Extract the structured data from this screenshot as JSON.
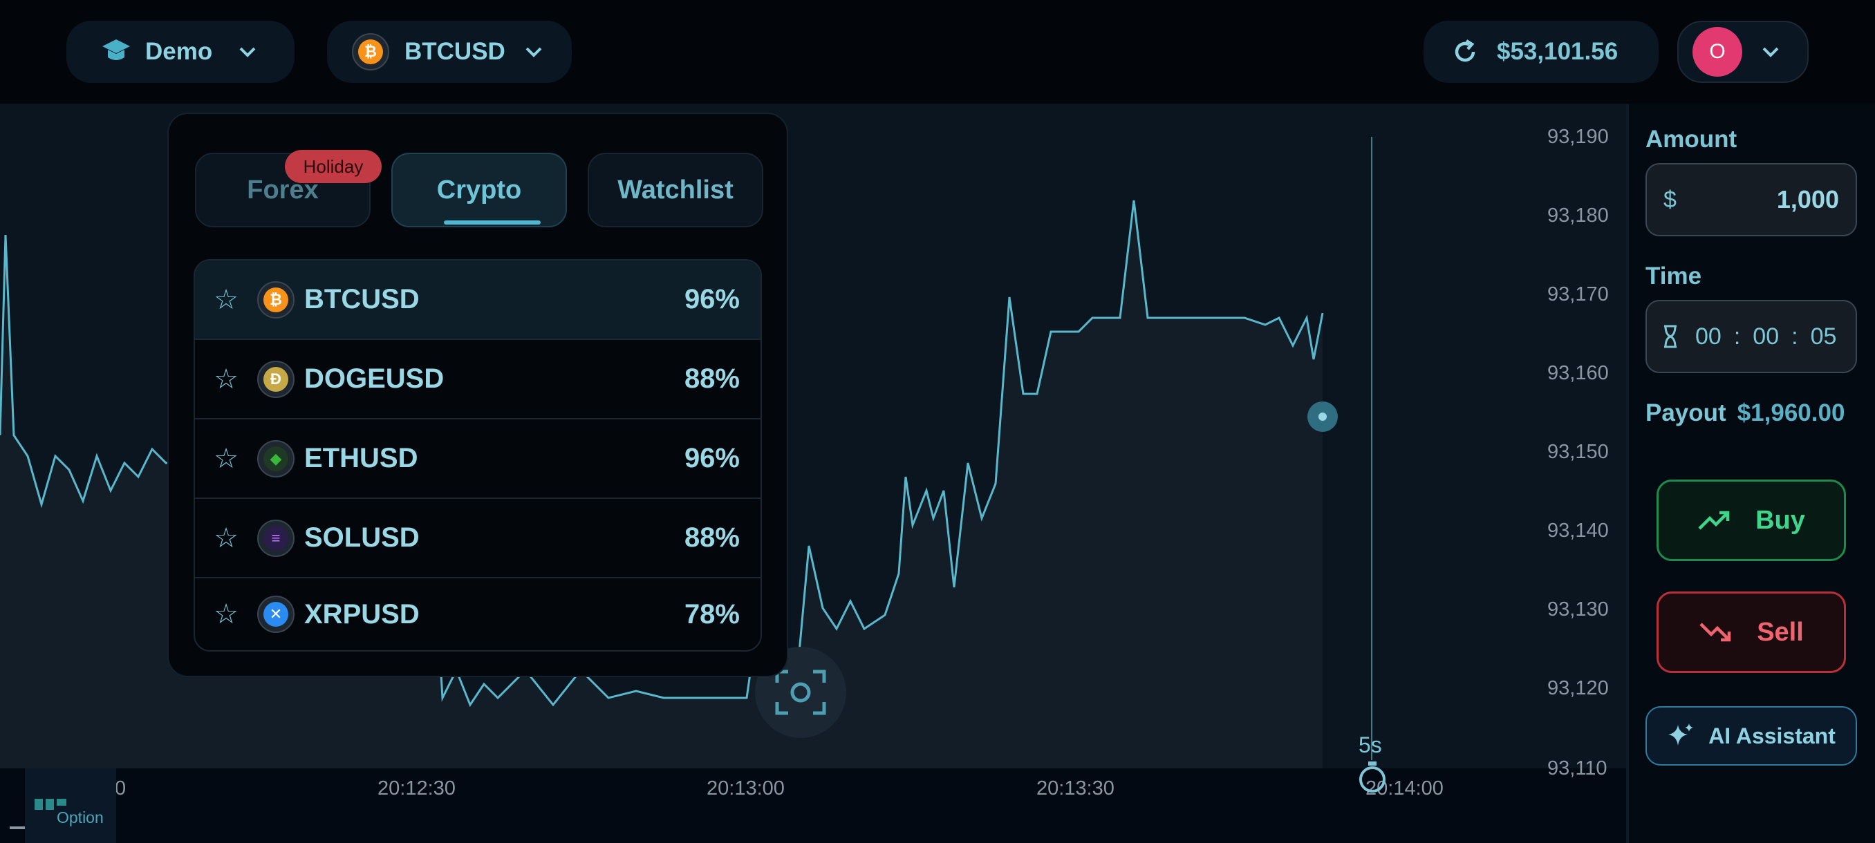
{
  "topbar": {
    "account_label": "Demo",
    "symbol": "BTCUSD",
    "balance": "$53,101.56",
    "avatar_letter": "O"
  },
  "tabs": [
    {
      "label": "Forex",
      "badge": "Holiday"
    },
    {
      "label": "Crypto"
    },
    {
      "label": "Watchlist"
    }
  ],
  "assets": [
    {
      "name": "BTCUSD",
      "payout": "96%",
      "icon_color": "#f7931a",
      "icon_text": "₿"
    },
    {
      "name": "DOGEUSD",
      "payout": "88%",
      "icon_color": "#c8a948",
      "icon_text": "Ð"
    },
    {
      "name": "ETHUSD",
      "payout": "96%",
      "icon_color": "#3ab83a",
      "icon_text": "◆"
    },
    {
      "name": "SOLUSD",
      "payout": "88%",
      "icon_color": "#9945ff",
      "icon_text": "≡"
    },
    {
      "name": "XRPUSD",
      "payout": "78%",
      "icon_color": "#2a8cf0",
      "icon_text": "✕"
    }
  ],
  "chart": {
    "y_ticks": [
      "93,190",
      "93,180",
      "93,170",
      "93,160",
      "93,150",
      "93,140",
      "93,130",
      "93,120",
      "93,110"
    ],
    "x_ticks": [
      "0",
      "20:12:30",
      "20:13:00",
      "20:13:30",
      "20:14:00"
    ],
    "timer_label": "5s"
  },
  "panel": {
    "amount_label": "Amount",
    "currency": "$",
    "amount_value": "1,000",
    "time_label": "Time",
    "time_h": "00",
    "time_m": "00",
    "time_s": "05",
    "sep": ":",
    "payout_label": "Payout",
    "payout_value": "$1,960.00",
    "buy_label": "Buy",
    "sell_label": "Sell",
    "ai_label": "AI Assistant"
  },
  "logo_text": "Option"
}
